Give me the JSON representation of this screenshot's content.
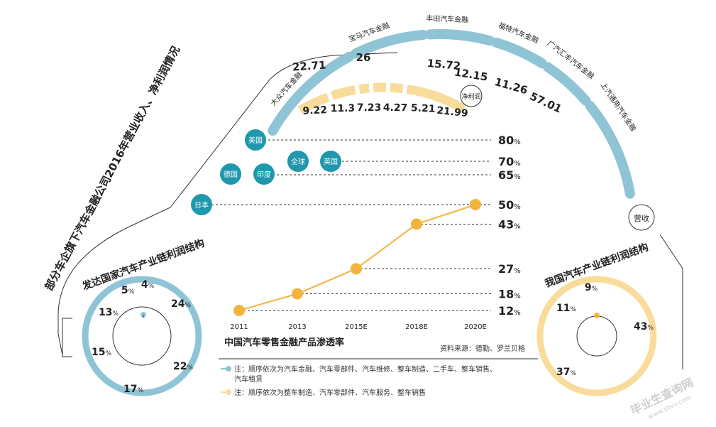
{
  "colors": {
    "blue": "#8ec4d6",
    "yellow": "#f9dc9c",
    "line": "#f3b33f",
    "bubble": "#1f97ad",
    "text": "#222222"
  },
  "side_title": "部分车企旗下汽车金融公司2016年营业收入、净利润情况",
  "revenue_tag": "营收",
  "profit_tag": "净利润",
  "companies": [
    "大众汽车金融",
    "宝马汽车金融",
    "丰田汽车金融",
    "福特汽车金融",
    "广汽汇丰汽车金融",
    "上汽通用汽车金融"
  ],
  "revenue_labels": [
    "22.71",
    "26",
    "15.72",
    "12.15",
    "11.26",
    "57.01"
  ],
  "profit_labels": [
    "9.22",
    "11.3",
    "7.23",
    "4.27",
    "5.21",
    "21.99"
  ],
  "penetration_chart": {
    "title": "中国汽车零售金融产品渗透率",
    "source": "资料来源：德勤、罗兰贝格",
    "x_labels": [
      "2011",
      "2013",
      "2015E",
      "2018E",
      "2020E"
    ],
    "y_values": [
      12,
      18,
      27,
      43,
      50
    ],
    "y_labels": [
      "12",
      "18",
      "27",
      "43",
      "50"
    ],
    "percent_sign": "%",
    "benchmark_labels": [
      "80",
      "70",
      "65",
      "50"
    ],
    "countries": [
      {
        "name": "美国",
        "value": 80
      },
      {
        "name": "全球",
        "value": 70
      },
      {
        "name": "英国",
        "value": 70
      },
      {
        "name": "德国",
        "value": 65
      },
      {
        "name": "印度",
        "value": 65
      },
      {
        "name": "日本",
        "value": 50
      }
    ]
  },
  "developed_donut": {
    "title": "发达国家汽车产业链利润结构",
    "labels": [
      "24",
      "22",
      "17",
      "15",
      "13",
      "5",
      "4"
    ]
  },
  "china_donut": {
    "title": "我国汽车产业链利润结构",
    "labels": [
      "43",
      "37",
      "11",
      "9"
    ]
  },
  "notes": [
    "注：顺序依次为汽车金融、汽车零部件、汽车维修、整车制造、二手车、整车销售、",
    "汽车租赁",
    "注：顺序依次为整车制造、汽车零部件、汽车服务、整车销售"
  ],
  "watermark": "毕业生查询网",
  "watermark_url": "www.sbvv.com",
  "chart_data": [
    {
      "type": "line",
      "title": "中国汽车零售金融产品渗透率",
      "x": [
        "2011",
        "2013",
        "2015E",
        "2018E",
        "2020E"
      ],
      "series": [
        {
          "values": [
            12,
            18,
            27,
            43,
            50
          ]
        }
      ],
      "reference_lines": [
        {
          "label": "美国",
          "value": 80
        },
        {
          "label": "全球",
          "value": 70
        },
        {
          "label": "英国",
          "value": 70
        },
        {
          "label": "德国",
          "value": 65
        },
        {
          "label": "印度",
          "value": 65
        },
        {
          "label": "日本",
          "value": 50
        }
      ],
      "unit": "%"
    },
    {
      "type": "bar",
      "title": "部分车企旗下汽车金融公司2016年营业收入、净利润情况",
      "categories": [
        "大众汽车金融",
        "宝马汽车金融",
        "丰田汽车金融",
        "福特汽车金融",
        "广汽汇丰汽车金融",
        "上汽通用汽车金融"
      ],
      "series": [
        {
          "name": "营收",
          "values": [
            22.71,
            26,
            15.72,
            12.15,
            11.26,
            57.01
          ]
        },
        {
          "name": "净利润",
          "values": [
            9.22,
            11.3,
            7.23,
            4.27,
            5.21,
            21.99
          ]
        }
      ]
    },
    {
      "type": "pie",
      "title": "发达国家汽车产业链利润结构",
      "values": [
        24,
        22,
        17,
        15,
        13,
        5,
        4
      ],
      "unit": "%"
    },
    {
      "type": "pie",
      "title": "我国汽车产业链利润结构",
      "values": [
        43,
        37,
        11,
        9
      ],
      "unit": "%"
    }
  ]
}
